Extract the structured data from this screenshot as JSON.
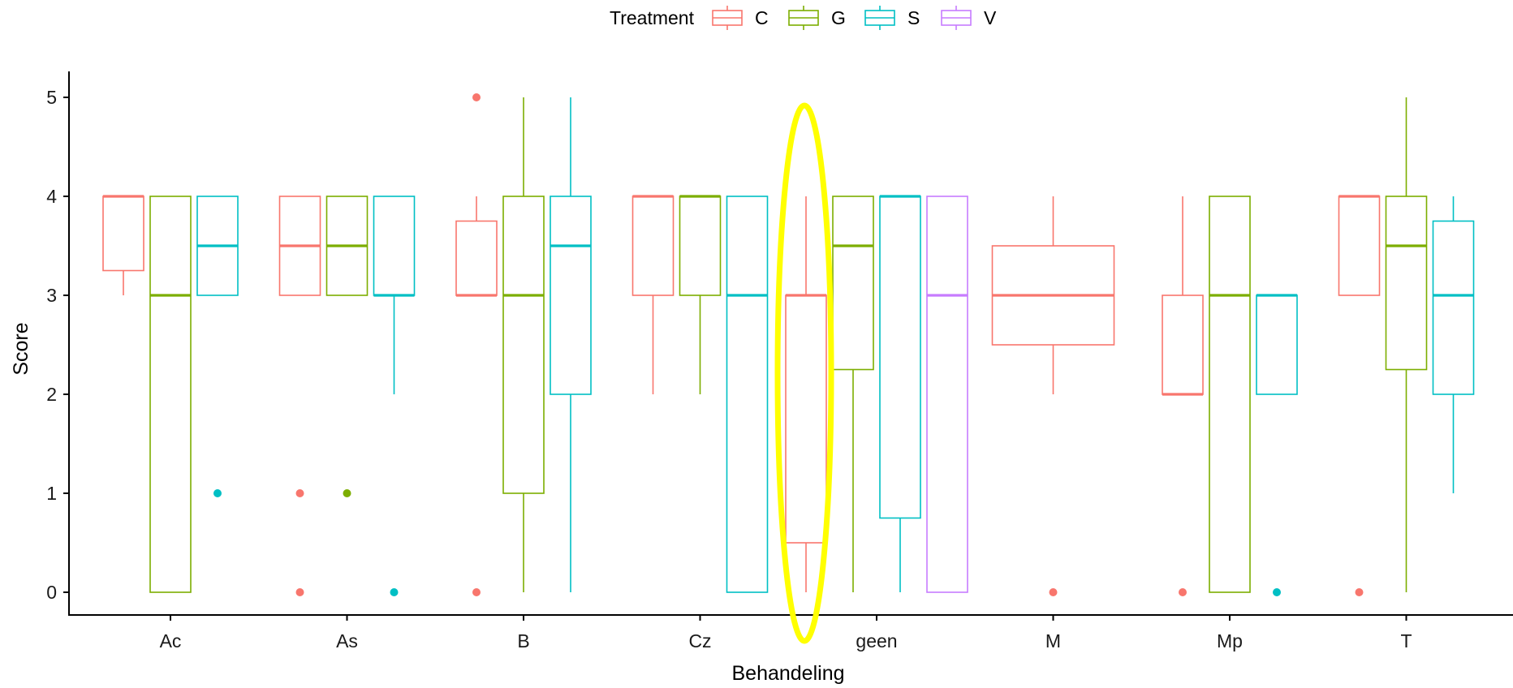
{
  "chart_data": {
    "type": "boxplot",
    "title": "",
    "xlabel": "Behandeling",
    "ylabel": "Score",
    "ylim": [
      -0.2,
      5.3
    ],
    "y_ticks": [
      0,
      1,
      2,
      3,
      4,
      5
    ],
    "grid": false,
    "legend": {
      "title": "Treatment",
      "position": "top",
      "entries": [
        {
          "key": "C",
          "color": "#F8766D"
        },
        {
          "key": "G",
          "color": "#7CAE00"
        },
        {
          "key": "S",
          "color": "#00BFC4"
        },
        {
          "key": "V",
          "color": "#C77CFF"
        }
      ]
    },
    "categories": [
      "Ac",
      "As",
      "B",
      "Cz",
      "geen",
      "M",
      "Mp",
      "T"
    ],
    "boxes": [
      {
        "category": "Ac",
        "treatment": "C",
        "whisker_low": 3,
        "q1": 3.25,
        "median": 4,
        "q3": 4,
        "whisker_high": 4,
        "outliers": []
      },
      {
        "category": "Ac",
        "treatment": "G",
        "whisker_low": 0,
        "q1": 0,
        "median": 3,
        "q3": 4,
        "whisker_high": 4,
        "outliers": []
      },
      {
        "category": "Ac",
        "treatment": "S",
        "whisker_low": 3,
        "q1": 3,
        "median": 3.5,
        "q3": 4,
        "whisker_high": 4,
        "outliers": [
          1
        ]
      },
      {
        "category": "As",
        "treatment": "C",
        "whisker_low": 3,
        "q1": 3,
        "median": 3.5,
        "q3": 4,
        "whisker_high": 4,
        "outliers": [
          1,
          0
        ]
      },
      {
        "category": "As",
        "treatment": "G",
        "whisker_low": 3,
        "q1": 3,
        "median": 3.5,
        "q3": 4,
        "whisker_high": 4,
        "outliers": [
          1
        ]
      },
      {
        "category": "As",
        "treatment": "S",
        "whisker_low": 2,
        "q1": 3,
        "median": 3,
        "q3": 4,
        "whisker_high": 4,
        "outliers": [
          0
        ]
      },
      {
        "category": "B",
        "treatment": "C",
        "whisker_low": 3,
        "q1": 3,
        "median": 3,
        "q3": 3.75,
        "whisker_high": 4,
        "outliers": [
          5,
          0
        ]
      },
      {
        "category": "B",
        "treatment": "G",
        "whisker_low": 0,
        "q1": 1,
        "median": 3,
        "q3": 4,
        "whisker_high": 5,
        "outliers": []
      },
      {
        "category": "B",
        "treatment": "S",
        "whisker_low": 0,
        "q1": 2,
        "median": 3.5,
        "q3": 4,
        "whisker_high": 5,
        "outliers": []
      },
      {
        "category": "Cz",
        "treatment": "C",
        "whisker_low": 2,
        "q1": 3,
        "median": 4,
        "q3": 4,
        "whisker_high": 4,
        "outliers": []
      },
      {
        "category": "Cz",
        "treatment": "G",
        "whisker_low": 2,
        "q1": 3,
        "median": 4,
        "q3": 4,
        "whisker_high": 4,
        "outliers": []
      },
      {
        "category": "Cz",
        "treatment": "S",
        "whisker_low": 0,
        "q1": 0,
        "median": 3,
        "q3": 4,
        "whisker_high": 4,
        "outliers": []
      },
      {
        "category": "geen",
        "treatment": "C",
        "whisker_low": 0,
        "q1": 0.5,
        "median": 3,
        "q3": 3,
        "whisker_high": 4,
        "outliers": []
      },
      {
        "category": "geen",
        "treatment": "G",
        "whisker_low": 0,
        "q1": 2.25,
        "median": 3.5,
        "q3": 4,
        "whisker_high": 4,
        "outliers": []
      },
      {
        "category": "geen",
        "treatment": "S",
        "whisker_low": 0,
        "q1": 0.75,
        "median": 4,
        "q3": 4,
        "whisker_high": 4,
        "outliers": []
      },
      {
        "category": "geen",
        "treatment": "V",
        "whisker_low": 0,
        "q1": 0,
        "median": 3,
        "q3": 4,
        "whisker_high": 4,
        "outliers": []
      },
      {
        "category": "M",
        "treatment": "C",
        "whisker_low": 2,
        "q1": 2.5,
        "median": 3,
        "q3": 3.5,
        "whisker_high": 4,
        "outliers": [
          0
        ]
      },
      {
        "category": "Mp",
        "treatment": "C",
        "whisker_low": 2,
        "q1": 2,
        "median": 2,
        "q3": 3,
        "whisker_high": 4,
        "outliers": [
          0
        ]
      },
      {
        "category": "Mp",
        "treatment": "G",
        "whisker_low": 0,
        "q1": 0,
        "median": 3,
        "q3": 4,
        "whisker_high": 4,
        "outliers": []
      },
      {
        "category": "Mp",
        "treatment": "S",
        "whisker_low": 2,
        "q1": 2,
        "median": 3,
        "q3": 3,
        "whisker_high": 3,
        "outliers": [
          0
        ]
      },
      {
        "category": "T",
        "treatment": "C",
        "whisker_low": 3,
        "q1": 3,
        "median": 4,
        "q3": 4,
        "whisker_high": 4,
        "outliers": [
          0
        ]
      },
      {
        "category": "T",
        "treatment": "G",
        "whisker_low": 0,
        "q1": 2.25,
        "median": 3.5,
        "q3": 4,
        "whisker_high": 5,
        "outliers": []
      },
      {
        "category": "T",
        "treatment": "S",
        "whisker_low": 1,
        "q1": 2,
        "median": 3,
        "q3": 3.75,
        "whisker_high": 4,
        "outliers": []
      }
    ],
    "annotations": [
      {
        "type": "ellipse",
        "color": "#FFFF00",
        "target": "geen / C"
      }
    ]
  }
}
